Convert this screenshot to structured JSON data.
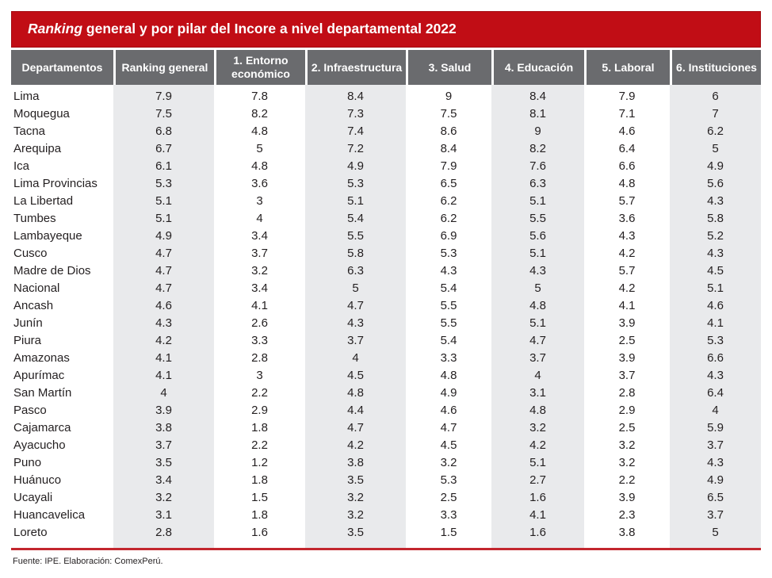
{
  "title": {
    "italic": "Ranking",
    "rest": " general y por pilar del Incore a nivel departamental 2022"
  },
  "footer": {
    "text": "Fuente: IPE. Elaboración: ComexPerú."
  },
  "colors": {
    "banner_red": "#c10d15",
    "header_gray": "#6a6b6e",
    "column_stripe_gray": "#e9eaec",
    "rule_red": "#c3262e",
    "text": "#231f20"
  },
  "chart_data": {
    "type": "table",
    "title": "Ranking general y por pilar del Incore a nivel departamental 2022",
    "columns": [
      "Departamentos",
      "Ranking general",
      "1. Entorno económico",
      "2. Infraestructura",
      "3. Salud",
      "4. Educación",
      "5. Laboral",
      "6. Instituciones"
    ],
    "striped_columns": [
      "Ranking general",
      "2. Infraestructura",
      "4. Educación",
      "6. Instituciones"
    ],
    "rows": [
      {
        "departamento": "Lima",
        "values": [
          "7.9",
          "7.8",
          "8.4",
          "9",
          "8.4",
          "7.9",
          "6"
        ]
      },
      {
        "departamento": "Moquegua",
        "values": [
          "7.5",
          "8.2",
          "7.3",
          "7.5",
          "8.1",
          "7.1",
          "7"
        ]
      },
      {
        "departamento": "Tacna",
        "values": [
          "6.8",
          "4.8",
          "7.4",
          "8.6",
          "9",
          "4.6",
          "6.2"
        ]
      },
      {
        "departamento": "Arequipa",
        "values": [
          "6.7",
          "5",
          "7.2",
          "8.4",
          "8.2",
          "6.4",
          "5"
        ]
      },
      {
        "departamento": "Ica",
        "values": [
          "6.1",
          "4.8",
          "4.9",
          "7.9",
          "7.6",
          "6.6",
          "4.9"
        ]
      },
      {
        "departamento": "Lima Provincias",
        "values": [
          "5.3",
          "3.6",
          "5.3",
          "6.5",
          "6.3",
          "4.8",
          "5.6"
        ]
      },
      {
        "departamento": "La Libertad",
        "values": [
          "5.1",
          "3",
          "5.1",
          "6.2",
          "5.1",
          "5.7",
          "4.3"
        ]
      },
      {
        "departamento": "Tumbes",
        "values": [
          "5.1",
          "4",
          "5.4",
          "6.2",
          "5.5",
          "3.6",
          "5.8"
        ]
      },
      {
        "departamento": "Lambayeque",
        "values": [
          "4.9",
          "3.4",
          "5.5",
          "6.9",
          "5.6",
          "4.3",
          "5.2"
        ]
      },
      {
        "departamento": "Cusco",
        "values": [
          "4.7",
          "3.7",
          "5.8",
          "5.3",
          "5.1",
          "4.2",
          "4.3"
        ]
      },
      {
        "departamento": "Madre de Dios",
        "values": [
          "4.7",
          "3.2",
          "6.3",
          "4.3",
          "4.3",
          "5.7",
          "4.5"
        ]
      },
      {
        "departamento": "Nacional",
        "values": [
          "4.7",
          "3.4",
          "5",
          "5.4",
          "5",
          "4.2",
          "5.1"
        ]
      },
      {
        "departamento": "Ancash",
        "values": [
          "4.6",
          "4.1",
          "4.7",
          "5.5",
          "4.8",
          "4.1",
          "4.6"
        ]
      },
      {
        "departamento": "Junín",
        "values": [
          "4.3",
          "2.6",
          "4.3",
          "5.5",
          "5.1",
          "3.9",
          "4.1"
        ]
      },
      {
        "departamento": "Piura",
        "values": [
          "4.2",
          "3.3",
          "3.7",
          "5.4",
          "4.7",
          "2.5",
          "5.3"
        ]
      },
      {
        "departamento": "Amazonas",
        "values": [
          "4.1",
          "2.8",
          "4",
          "3.3",
          "3.7",
          "3.9",
          "6.6"
        ]
      },
      {
        "departamento": "Apurímac",
        "values": [
          "4.1",
          "3",
          "4.5",
          "4.8",
          "4",
          "3.7",
          "4.3"
        ]
      },
      {
        "departamento": "San Martín",
        "values": [
          "4",
          "2.2",
          "4.8",
          "4.9",
          "3.1",
          "2.8",
          "6.4"
        ]
      },
      {
        "departamento": "Pasco",
        "values": [
          "3.9",
          "2.9",
          "4.4",
          "4.6",
          "4.8",
          "2.9",
          "4"
        ]
      },
      {
        "departamento": "Cajamarca",
        "values": [
          "3.8",
          "1.8",
          "4.7",
          "4.7",
          "3.2",
          "2.5",
          "5.9"
        ]
      },
      {
        "departamento": "Ayacucho",
        "values": [
          "3.7",
          "2.2",
          "4.2",
          "4.5",
          "4.2",
          "3.2",
          "3.7"
        ]
      },
      {
        "departamento": "Puno",
        "values": [
          "3.5",
          "1.2",
          "3.8",
          "3.2",
          "5.1",
          "3.2",
          "4.3"
        ]
      },
      {
        "departamento": "Huánuco",
        "values": [
          "3.4",
          "1.8",
          "3.5",
          "5.3",
          "2.7",
          "2.2",
          "4.9"
        ]
      },
      {
        "departamento": "Ucayali",
        "values": [
          "3.2",
          "1.5",
          "3.2",
          "2.5",
          "1.6",
          "3.9",
          "6.5"
        ]
      },
      {
        "departamento": "Huancavelica",
        "values": [
          "3.1",
          "1.8",
          "3.2",
          "3.3",
          "4.1",
          "2.3",
          "3.7"
        ]
      },
      {
        "departamento": "Loreto",
        "values": [
          "2.8",
          "1.6",
          "3.5",
          "1.5",
          "1.6",
          "3.8",
          "5"
        ]
      }
    ]
  }
}
